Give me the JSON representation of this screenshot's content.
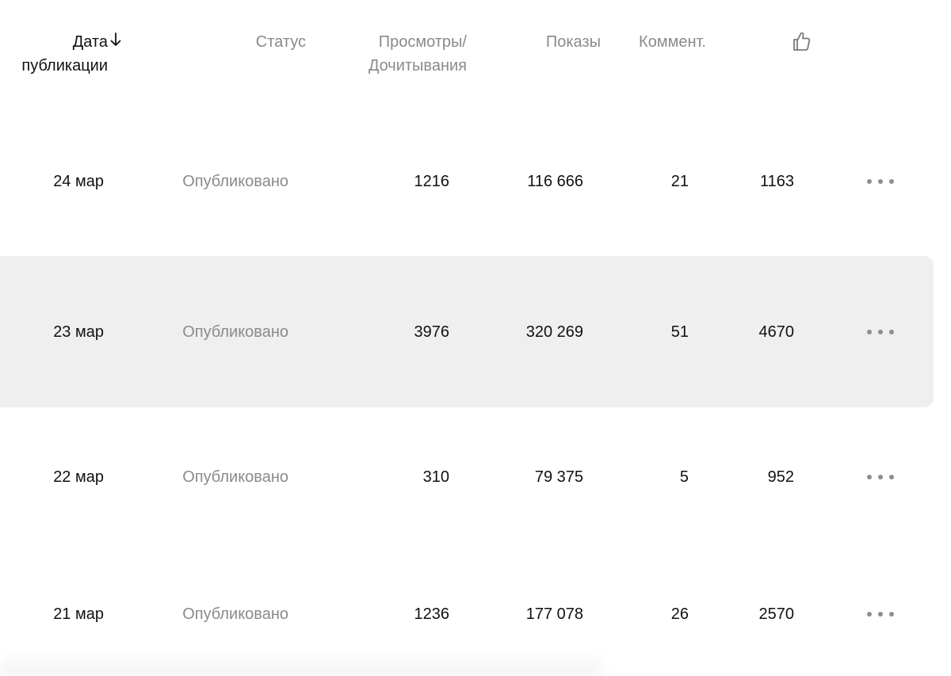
{
  "header": {
    "date_line1": "Дата",
    "date_line2": "публикации",
    "status": "Статус",
    "views_line1": "Просмотры/",
    "views_line2": "Дочитывания",
    "shows": "Показы",
    "comments": "Коммент.",
    "likes_icon": "thumbs-up-icon",
    "sort_icon": "arrow-down-icon"
  },
  "rows": [
    {
      "date": "24 мар",
      "status": "Опубликовано",
      "views": "1216",
      "shows": "116 666",
      "comments": "21",
      "likes": "1163"
    },
    {
      "date": "23 мар",
      "status": "Опубликовано",
      "views": "3976",
      "shows": "320 269",
      "comments": "51",
      "likes": "4670"
    },
    {
      "date": "22 мар",
      "status": "Опубликовано",
      "views": "310",
      "shows": "79 375",
      "comments": "5",
      "likes": "952"
    },
    {
      "date": "21 мар",
      "status": "Опубликовано",
      "views": "1236",
      "shows": "177 078",
      "comments": "26",
      "likes": "2570"
    }
  ],
  "row_more_icon": "more-horizontal-icon",
  "colors": {
    "hover_row": "#efefef",
    "muted_text": "#8a8a8a",
    "text": "#111111"
  }
}
